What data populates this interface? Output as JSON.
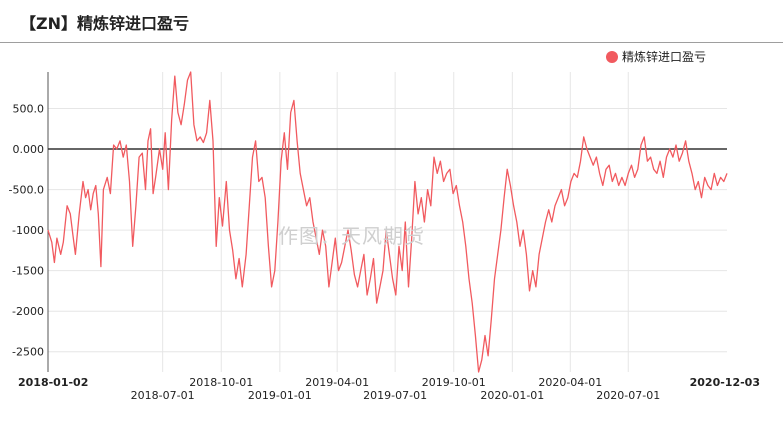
{
  "header": {
    "title": "【ZN】精炼锌进口盈亏"
  },
  "watermark": "作图：天风期货",
  "colors": {
    "series": "#f15a5f",
    "zero_line": "#333333",
    "grid": "#e6e6e6"
  },
  "chart_data": {
    "type": "line",
    "title": "",
    "xlabel": "",
    "ylabel": "",
    "ylim": [
      -2750,
      950
    ],
    "yticks": [
      500,
      0,
      -500,
      -1000,
      -1500,
      -2000,
      -2500
    ],
    "ytick_labels": [
      "500.0",
      "0.000",
      "-500.0",
      "-1000",
      "-1500",
      "-2000",
      "-2500"
    ],
    "xrange": [
      "2018-01-02",
      "2020-12-03"
    ],
    "xticks": [
      {
        "date": "2018-01-02",
        "label": "2018-01-02",
        "row": 0,
        "bold": true
      },
      {
        "date": "2018-07-01",
        "label": "2018-07-01",
        "row": 1,
        "bold": false
      },
      {
        "date": "2018-10-01",
        "label": "2018-10-01",
        "row": 0,
        "bold": false
      },
      {
        "date": "2019-01-01",
        "label": "2019-01-01",
        "row": 1,
        "bold": false
      },
      {
        "date": "2019-04-01",
        "label": "2019-04-01",
        "row": 0,
        "bold": false
      },
      {
        "date": "2019-07-01",
        "label": "2019-07-01",
        "row": 1,
        "bold": false
      },
      {
        "date": "2019-10-01",
        "label": "2019-10-01",
        "row": 0,
        "bold": false
      },
      {
        "date": "2020-01-01",
        "label": "2020-01-01",
        "row": 1,
        "bold": false
      },
      {
        "date": "2020-04-01",
        "label": "2020-04-01",
        "row": 0,
        "bold": false
      },
      {
        "date": "2020-07-01",
        "label": "2020-07-01",
        "row": 1,
        "bold": false
      },
      {
        "date": "2020-12-03",
        "label": "2020-12-03",
        "row": 0,
        "bold": true
      }
    ],
    "grid": true,
    "legend_position": "top-right",
    "series": [
      {
        "name": "精炼锌进口盈亏",
        "color": "#f15a5f",
        "points": [
          [
            "2018-01-02",
            -1000
          ],
          [
            "2018-01-08",
            -1150
          ],
          [
            "2018-01-12",
            -1400
          ],
          [
            "2018-01-16",
            -1100
          ],
          [
            "2018-01-22",
            -1300
          ],
          [
            "2018-01-26",
            -1150
          ],
          [
            "2018-02-01",
            -700
          ],
          [
            "2018-02-06",
            -800
          ],
          [
            "2018-02-10",
            -1050
          ],
          [
            "2018-02-14",
            -1300
          ],
          [
            "2018-02-20",
            -800
          ],
          [
            "2018-02-26",
            -400
          ],
          [
            "2018-03-02",
            -600
          ],
          [
            "2018-03-06",
            -500
          ],
          [
            "2018-03-10",
            -750
          ],
          [
            "2018-03-14",
            -550
          ],
          [
            "2018-03-18",
            -450
          ],
          [
            "2018-03-22",
            -800
          ],
          [
            "2018-03-26",
            -1450
          ],
          [
            "2018-03-30",
            -500
          ],
          [
            "2018-04-05",
            -350
          ],
          [
            "2018-04-10",
            -550
          ],
          [
            "2018-04-15",
            50
          ],
          [
            "2018-04-20",
            0
          ],
          [
            "2018-04-25",
            100
          ],
          [
            "2018-04-30",
            -100
          ],
          [
            "2018-05-05",
            50
          ],
          [
            "2018-05-10",
            -400
          ],
          [
            "2018-05-15",
            -1200
          ],
          [
            "2018-05-20",
            -700
          ],
          [
            "2018-05-25",
            -100
          ],
          [
            "2018-05-30",
            -50
          ],
          [
            "2018-06-04",
            -500
          ],
          [
            "2018-06-08",
            100
          ],
          [
            "2018-06-12",
            250
          ],
          [
            "2018-06-16",
            -550
          ],
          [
            "2018-06-20",
            -350
          ],
          [
            "2018-06-26",
            0
          ],
          [
            "2018-07-01",
            -250
          ],
          [
            "2018-07-05",
            200
          ],
          [
            "2018-07-10",
            -500
          ],
          [
            "2018-07-15",
            350
          ],
          [
            "2018-07-20",
            900
          ],
          [
            "2018-07-25",
            450
          ],
          [
            "2018-07-30",
            300
          ],
          [
            "2018-08-04",
            550
          ],
          [
            "2018-08-09",
            850
          ],
          [
            "2018-08-14",
            950
          ],
          [
            "2018-08-19",
            300
          ],
          [
            "2018-08-24",
            100
          ],
          [
            "2018-08-29",
            150
          ],
          [
            "2018-09-03",
            80
          ],
          [
            "2018-09-08",
            200
          ],
          [
            "2018-09-13",
            600
          ],
          [
            "2018-09-18",
            100
          ],
          [
            "2018-09-23",
            -1200
          ],
          [
            "2018-09-28",
            -600
          ],
          [
            "2018-10-03",
            -950
          ],
          [
            "2018-10-09",
            -400
          ],
          [
            "2018-10-14",
            -1000
          ],
          [
            "2018-10-19",
            -1250
          ],
          [
            "2018-10-24",
            -1600
          ],
          [
            "2018-10-29",
            -1350
          ],
          [
            "2018-11-03",
            -1700
          ],
          [
            "2018-11-09",
            -1300
          ],
          [
            "2018-11-14",
            -700
          ],
          [
            "2018-11-19",
            -100
          ],
          [
            "2018-11-24",
            100
          ],
          [
            "2018-11-29",
            -400
          ],
          [
            "2018-12-04",
            -350
          ],
          [
            "2018-12-09",
            -600
          ],
          [
            "2018-12-14",
            -1200
          ],
          [
            "2018-12-19",
            -1700
          ],
          [
            "2018-12-24",
            -1500
          ],
          [
            "2018-12-29",
            -900
          ],
          [
            "2019-01-03",
            -150
          ],
          [
            "2019-01-08",
            200
          ],
          [
            "2019-01-13",
            -250
          ],
          [
            "2019-01-18",
            450
          ],
          [
            "2019-01-23",
            600
          ],
          [
            "2019-01-28",
            100
          ],
          [
            "2019-02-02",
            -300
          ],
          [
            "2019-02-07",
            -500
          ],
          [
            "2019-02-12",
            -700
          ],
          [
            "2019-02-17",
            -600
          ],
          [
            "2019-02-22",
            -900
          ],
          [
            "2019-02-27",
            -1100
          ],
          [
            "2019-03-04",
            -1300
          ],
          [
            "2019-03-09",
            -1000
          ],
          [
            "2019-03-14",
            -1200
          ],
          [
            "2019-03-19",
            -1700
          ],
          [
            "2019-03-24",
            -1400
          ],
          [
            "2019-03-29",
            -1100
          ],
          [
            "2019-04-03",
            -1500
          ],
          [
            "2019-04-08",
            -1400
          ],
          [
            "2019-04-13",
            -1200
          ],
          [
            "2019-04-18",
            -1000
          ],
          [
            "2019-04-23",
            -1250
          ],
          [
            "2019-04-28",
            -1550
          ],
          [
            "2019-05-03",
            -1700
          ],
          [
            "2019-05-08",
            -1500
          ],
          [
            "2019-05-13",
            -1300
          ],
          [
            "2019-05-18",
            -1800
          ],
          [
            "2019-05-23",
            -1600
          ],
          [
            "2019-05-28",
            -1350
          ],
          [
            "2019-06-02",
            -1900
          ],
          [
            "2019-06-07",
            -1700
          ],
          [
            "2019-06-12",
            -1500
          ],
          [
            "2019-06-17",
            -1000
          ],
          [
            "2019-06-22",
            -1300
          ],
          [
            "2019-06-27",
            -1600
          ],
          [
            "2019-07-02",
            -1800
          ],
          [
            "2019-07-07",
            -1200
          ],
          [
            "2019-07-12",
            -1500
          ],
          [
            "2019-07-17",
            -900
          ],
          [
            "2019-07-22",
            -1700
          ],
          [
            "2019-07-27",
            -1100
          ],
          [
            "2019-08-01",
            -400
          ],
          [
            "2019-08-06",
            -800
          ],
          [
            "2019-08-11",
            -600
          ],
          [
            "2019-08-16",
            -900
          ],
          [
            "2019-08-21",
            -500
          ],
          [
            "2019-08-26",
            -700
          ],
          [
            "2019-08-31",
            -100
          ],
          [
            "2019-09-05",
            -300
          ],
          [
            "2019-09-10",
            -150
          ],
          [
            "2019-09-15",
            -400
          ],
          [
            "2019-09-20",
            -300
          ],
          [
            "2019-09-25",
            -250
          ],
          [
            "2019-09-30",
            -550
          ],
          [
            "2019-10-05",
            -450
          ],
          [
            "2019-10-10",
            -700
          ],
          [
            "2019-10-15",
            -900
          ],
          [
            "2019-10-20",
            -1200
          ],
          [
            "2019-10-25",
            -1600
          ],
          [
            "2019-10-30",
            -1900
          ],
          [
            "2019-11-04",
            -2300
          ],
          [
            "2019-11-09",
            -2750
          ],
          [
            "2019-11-14",
            -2600
          ],
          [
            "2019-11-19",
            -2300
          ],
          [
            "2019-11-24",
            -2550
          ],
          [
            "2019-11-29",
            -2100
          ],
          [
            "2019-12-04",
            -1600
          ],
          [
            "2019-12-09",
            -1300
          ],
          [
            "2019-12-14",
            -1000
          ],
          [
            "2019-12-19",
            -600
          ],
          [
            "2019-12-24",
            -250
          ],
          [
            "2019-12-29",
            -450
          ],
          [
            "2020-01-03",
            -700
          ],
          [
            "2020-01-08",
            -900
          ],
          [
            "2020-01-13",
            -1200
          ],
          [
            "2020-01-18",
            -1000
          ],
          [
            "2020-01-23",
            -1300
          ],
          [
            "2020-01-28",
            -1750
          ],
          [
            "2020-02-02",
            -1500
          ],
          [
            "2020-02-07",
            -1700
          ],
          [
            "2020-02-12",
            -1300
          ],
          [
            "2020-02-17",
            -1100
          ],
          [
            "2020-02-22",
            -900
          ],
          [
            "2020-02-27",
            -750
          ],
          [
            "2020-03-03",
            -900
          ],
          [
            "2020-03-08",
            -700
          ],
          [
            "2020-03-13",
            -600
          ],
          [
            "2020-03-18",
            -500
          ],
          [
            "2020-03-23",
            -700
          ],
          [
            "2020-03-28",
            -600
          ],
          [
            "2020-04-02",
            -400
          ],
          [
            "2020-04-07",
            -300
          ],
          [
            "2020-04-12",
            -350
          ],
          [
            "2020-04-17",
            -150
          ],
          [
            "2020-04-22",
            150
          ],
          [
            "2020-04-27",
            0
          ],
          [
            "2020-05-02",
            -100
          ],
          [
            "2020-05-07",
            -200
          ],
          [
            "2020-05-12",
            -100
          ],
          [
            "2020-05-17",
            -300
          ],
          [
            "2020-05-22",
            -450
          ],
          [
            "2020-05-27",
            -250
          ],
          [
            "2020-06-01",
            -200
          ],
          [
            "2020-06-06",
            -400
          ],
          [
            "2020-06-11",
            -300
          ],
          [
            "2020-06-16",
            -450
          ],
          [
            "2020-06-21",
            -350
          ],
          [
            "2020-06-26",
            -450
          ],
          [
            "2020-07-01",
            -300
          ],
          [
            "2020-07-06",
            -200
          ],
          [
            "2020-07-11",
            -350
          ],
          [
            "2020-07-16",
            -250
          ],
          [
            "2020-07-21",
            50
          ],
          [
            "2020-07-26",
            150
          ],
          [
            "2020-07-31",
            -150
          ],
          [
            "2020-08-05",
            -100
          ],
          [
            "2020-08-10",
            -250
          ],
          [
            "2020-08-15",
            -300
          ],
          [
            "2020-08-20",
            -150
          ],
          [
            "2020-08-25",
            -350
          ],
          [
            "2020-08-30",
            -100
          ],
          [
            "2020-09-04",
            0
          ],
          [
            "2020-09-09",
            -100
          ],
          [
            "2020-09-14",
            50
          ],
          [
            "2020-09-19",
            -150
          ],
          [
            "2020-09-24",
            -50
          ],
          [
            "2020-09-29",
            100
          ],
          [
            "2020-10-04",
            -150
          ],
          [
            "2020-10-09",
            -300
          ],
          [
            "2020-10-14",
            -500
          ],
          [
            "2020-10-19",
            -400
          ],
          [
            "2020-10-24",
            -600
          ],
          [
            "2020-10-29",
            -350
          ],
          [
            "2020-11-03",
            -450
          ],
          [
            "2020-11-08",
            -500
          ],
          [
            "2020-11-13",
            -300
          ],
          [
            "2020-11-18",
            -450
          ],
          [
            "2020-11-23",
            -350
          ],
          [
            "2020-11-28",
            -400
          ],
          [
            "2020-12-03",
            -300
          ]
        ]
      }
    ]
  }
}
